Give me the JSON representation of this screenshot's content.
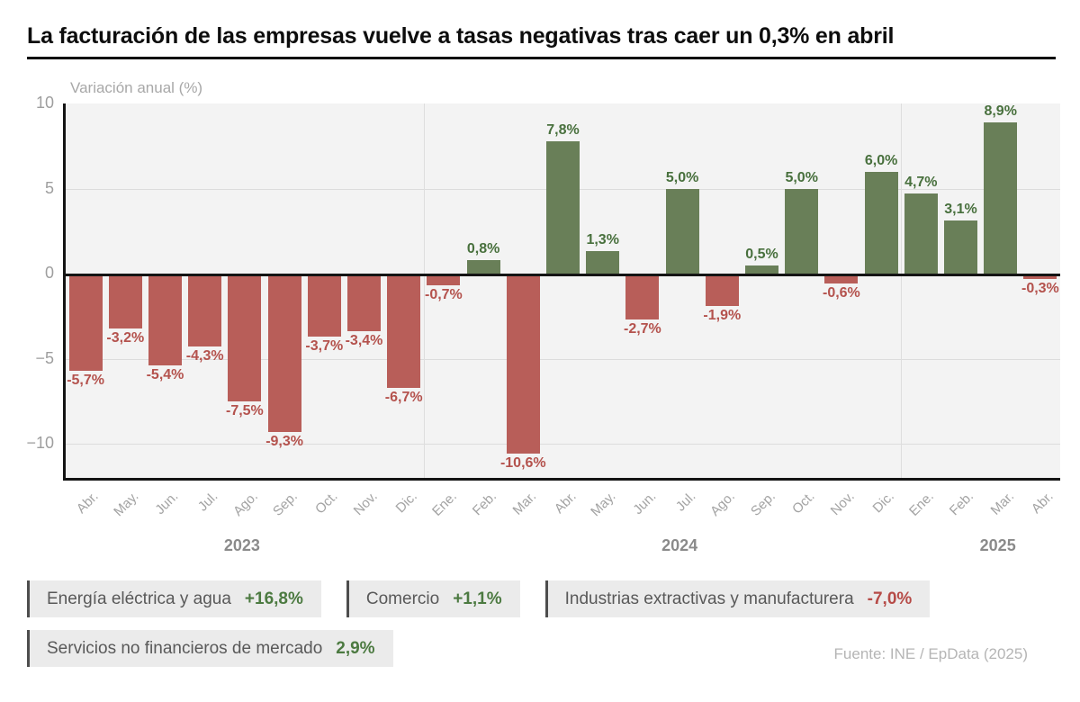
{
  "title": "La facturación de las empresas vuelve a tasas negativas tras caer un 0,3% en abril",
  "subtitle": "Variación anual (%)",
  "source": "Fuente: INE / EpData (2025)",
  "chart_data": {
    "type": "bar",
    "title": "La facturación de las empresas vuelve a tasas negativas tras caer un 0,3% en abril",
    "ylabel": "Variación anual (%)",
    "xlabel": "",
    "grid": true,
    "ylim": [
      -12,
      10
    ],
    "y_ticks": [
      {
        "value": 10,
        "label": "10"
      },
      {
        "value": 5,
        "label": "5"
      },
      {
        "value": 0,
        "label": "0"
      },
      {
        "value": -5,
        "label": "−5"
      },
      {
        "value": -10,
        "label": "−10"
      }
    ],
    "categories": [
      "Abr.",
      "May.",
      "Jun.",
      "Jul.",
      "Ago.",
      "Sep.",
      "Oct.",
      "Nov.",
      "Dic.",
      "Ene.",
      "Feb.",
      "Mar.",
      "Abr.",
      "May.",
      "Jun.",
      "Jul.",
      "Ago.",
      "Sep.",
      "Oct.",
      "Nov.",
      "Dic.",
      "Ene.",
      "Feb.",
      "Mar.",
      "Abr."
    ],
    "values": [
      -5.7,
      -3.2,
      -5.4,
      -4.3,
      -7.5,
      -9.3,
      -3.7,
      -3.4,
      -6.7,
      -0.7,
      0.8,
      -10.6,
      7.8,
      1.3,
      -2.7,
      5.0,
      -1.9,
      0.5,
      5.0,
      -0.6,
      6.0,
      4.7,
      3.1,
      8.9,
      -0.3
    ],
    "value_labels": [
      "-5,7%",
      "-3,2%",
      "-5,4%",
      "-4,3%",
      "-7,5%",
      "-9,3%",
      "-3,7%",
      "-3,4%",
      "-6,7%",
      "-0,7%",
      "0,8%",
      "-10,6%",
      "7,8%",
      "1,3%",
      "-2,7%",
      "5,0%",
      "-1,9%",
      "0,5%",
      "5,0%",
      "-0,6%",
      "6,0%",
      "4,7%",
      "3,1%",
      "8,9%",
      "-0,3%"
    ],
    "years": [
      {
        "label": "2023",
        "anchor_index": 4
      },
      {
        "label": "2024",
        "anchor_index": 15
      },
      {
        "label": "2025",
        "anchor_index": 23
      }
    ],
    "year_separator_indices": [
      9,
      21
    ],
    "colors": {
      "positive_bar": "#697f58",
      "negative_bar": "#b85e59",
      "positive_label": "#48703d",
      "negative_label": "#b4524d"
    },
    "legend_position": "none"
  },
  "badges": [
    {
      "label": "Energía eléctrica y agua",
      "value": "+16,8%",
      "trend": "positive"
    },
    {
      "label": "Comercio",
      "value": "+1,1%",
      "trend": "positive"
    },
    {
      "label": "Industrias extractivas y manufacturera",
      "value": "-7,0%",
      "trend": "negative"
    },
    {
      "label": "Servicios no financieros de mercado",
      "value": "2,9%",
      "trend": "positive"
    }
  ]
}
